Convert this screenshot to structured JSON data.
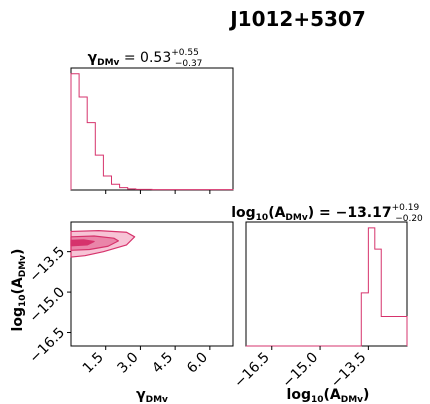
{
  "chart_data": [
    {
      "type": "histogram",
      "panel": "gamma-marginal",
      "title": "γDMv = 0.53 +0.55 −0.37",
      "title_parts": {
        "symbol": "γ",
        "sub": "DMv",
        "eq": " = 0.53",
        "sup": "+0.55",
        "low": "−0.37"
      },
      "xlim": [
        0,
        7
      ],
      "bins": [
        {
          "x0": 0.0,
          "x1": 0.35,
          "y": 1.0
        },
        {
          "x0": 0.35,
          "x1": 0.7,
          "y": 0.8
        },
        {
          "x0": 0.7,
          "x1": 1.05,
          "y": 0.58
        },
        {
          "x0": 1.05,
          "x1": 1.4,
          "y": 0.3
        },
        {
          "x0": 1.4,
          "x1": 1.75,
          "y": 0.12
        },
        {
          "x0": 1.75,
          "x1": 2.1,
          "y": 0.05
        },
        {
          "x0": 2.1,
          "x1": 2.45,
          "y": 0.02
        },
        {
          "x0": 2.45,
          "x1": 2.8,
          "y": 0.01
        },
        {
          "x0": 2.8,
          "x1": 3.5,
          "y": 0.005
        },
        {
          "x0": 3.5,
          "x1": 7.0,
          "y": 0.003
        }
      ],
      "ylim": [
        0,
        1.05
      ],
      "xticks": [
        1.5,
        3.0,
        4.5,
        6.0
      ],
      "color": "#d6336c"
    },
    {
      "type": "contour",
      "panel": "joint",
      "xlim": [
        0,
        7
      ],
      "ylim": [
        -17.0,
        -12.4
      ],
      "xticks": [
        "1.5",
        "3.0",
        "4.5",
        "6.0"
      ],
      "yticks": [
        "−13.5",
        "−15.0",
        "−16.5"
      ],
      "xtick_values": [
        1.5,
        3.0,
        4.5,
        6.0
      ],
      "ytick_values": [
        -13.5,
        -15.0,
        -16.5
      ],
      "xlabel": "γDMv",
      "ylabel": "log10(ADMv)",
      "contour_levels": [
        {
          "level": "outer",
          "points": [
            [
              0.0,
              -12.75
            ],
            [
              1.2,
              -12.72
            ],
            [
              2.4,
              -12.78
            ],
            [
              2.75,
              -12.95
            ],
            [
              2.4,
              -13.25
            ],
            [
              1.4,
              -13.5
            ],
            [
              0.6,
              -13.65
            ],
            [
              0.0,
              -13.7
            ]
          ],
          "fill": "#f7c4d6"
        },
        {
          "level": "middle",
          "points": [
            [
              0.0,
              -12.95
            ],
            [
              1.0,
              -12.92
            ],
            [
              1.85,
              -13.0
            ],
            [
              2.05,
              -13.1
            ],
            [
              1.6,
              -13.3
            ],
            [
              0.8,
              -13.42
            ],
            [
              0.0,
              -13.45
            ]
          ],
          "fill": "#ea85a9"
        },
        {
          "level": "inner",
          "points": [
            [
              0.0,
              -13.08
            ],
            [
              0.55,
              -13.06
            ],
            [
              1.0,
              -13.12
            ],
            [
              0.7,
              -13.25
            ],
            [
              0.0,
              -13.28
            ]
          ],
          "fill": "#d6336c"
        }
      ],
      "color": "#d6336c"
    },
    {
      "type": "histogram",
      "panel": "log10A-marginal",
      "title": "log10(ADMv) = −13.17 +0.19 −0.20",
      "title_parts": {
        "pre": "log",
        "sub10": "10",
        "mid": "(A",
        "sub": "DMv",
        "post": ") = −13.17",
        "sup": "+0.19",
        "low": "−0.20"
      },
      "xlim": [
        -17.3,
        -12.3
      ],
      "xticks": [
        "−16.5",
        "−15.0",
        "−13.5"
      ],
      "xtick_values": [
        -16.5,
        -15.0,
        -13.5
      ],
      "xlabel": "log10(ADMv)",
      "bins": [
        {
          "x0": -17.3,
          "x1": -13.72,
          "y": 0.0
        },
        {
          "x0": -13.72,
          "x1": -13.5,
          "y": 0.45
        },
        {
          "x0": -13.5,
          "x1": -13.3,
          "y": 1.0
        },
        {
          "x0": -13.3,
          "x1": -13.1,
          "y": 0.82
        },
        {
          "x0": -13.1,
          "x1": -12.92,
          "y": 0.25
        },
        {
          "x0": -12.92,
          "x1": -12.3,
          "y": 0.25
        }
      ],
      "ylim": [
        0,
        1.05
      ],
      "color": "#d6336c"
    }
  ],
  "figure": {
    "title": "J1012+5307"
  }
}
